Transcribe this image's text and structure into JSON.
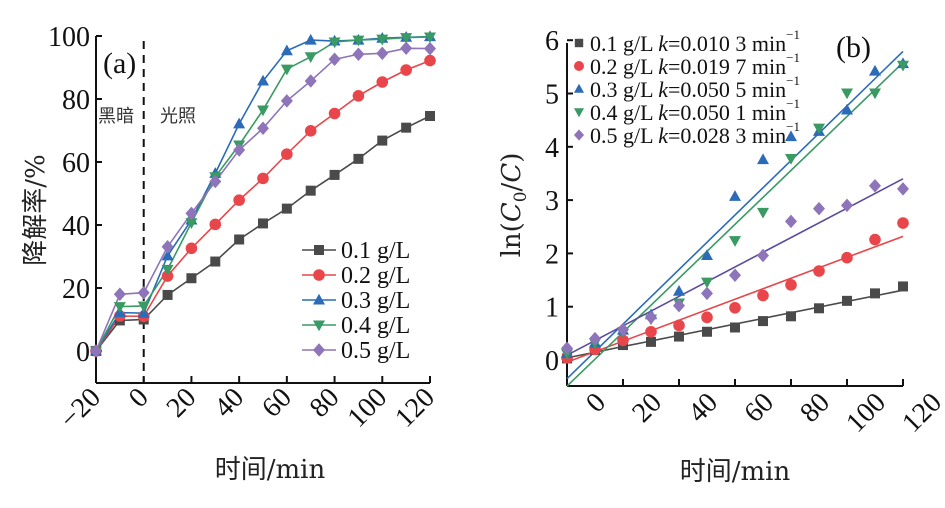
{
  "chart_data": [
    {
      "panel": "(a)",
      "type": "line",
      "title": "",
      "xlabel": "时间/min",
      "ylabel": "降解率/%",
      "xlim": [
        -20,
        120
      ],
      "ylim": [
        -10,
        100
      ],
      "xticks": [
        -20,
        0,
        20,
        40,
        60,
        80,
        100,
        120
      ],
      "yticks": [
        0,
        20,
        40,
        60,
        80,
        100
      ],
      "x": [
        -20,
        -10,
        0,
        10,
        20,
        30,
        40,
        50,
        60,
        70,
        80,
        90,
        100,
        110,
        120
      ],
      "annotations": {
        "dark": "黑暗",
        "light": "光照",
        "divider_x": 0
      },
      "legend_position": "bottom-right",
      "series": [
        {
          "name": "0.1 g/L",
          "marker": "square",
          "color": "#4a4a4a",
          "values": [
            0,
            9.7,
            10,
            17.8,
            23.1,
            28.4,
            35.4,
            40.5,
            45.2,
            50.9,
            55.9,
            61.0,
            66.8,
            70.9,
            74.6
          ]
        },
        {
          "name": "0.2 g/L",
          "marker": "circle",
          "color": "#e8464a",
          "values": [
            0,
            11.1,
            11,
            23.8,
            32.6,
            40.2,
            47.9,
            54.8,
            62.5,
            69.9,
            75.4,
            81.0,
            85.4,
            89.2,
            92.2
          ]
        },
        {
          "name": "0.3 g/L",
          "marker": "triangle-up",
          "color": "#2b6bb8",
          "values": [
            0,
            12.2,
            12,
            30.2,
            41.6,
            56.4,
            72.1,
            85.7,
            95.3,
            98.7,
            98.4,
            98.7,
            99.3,
            99.6,
            99.8
          ]
        },
        {
          "name": "0.4 g/L",
          "marker": "triangle-down",
          "color": "#3a9a63",
          "values": [
            0,
            14.1,
            14.3,
            25.9,
            40.7,
            55.3,
            65.4,
            76.5,
            89.5,
            93.4,
            98.1,
            98.7,
            99.0,
            99.5,
            99.7
          ]
        },
        {
          "name": "0.5 g/L",
          "marker": "diamond",
          "color": "#8e74b8",
          "values": [
            0,
            18.0,
            18.5,
            33.1,
            43.7,
            53.8,
            63.8,
            70.7,
            79.4,
            85.7,
            92.6,
            94.2,
            94.5,
            96.1,
            96.0
          ]
        }
      ]
    },
    {
      "panel": "(b)",
      "type": "scatter",
      "title": "",
      "xlabel": "时间/min",
      "ylabel_prefix": "ln(",
      "ylabel_c0": "C",
      "ylabel_sub": "0",
      "ylabel_mid": "/",
      "ylabel_c": "C",
      "ylabel_suffix": ")",
      "xlim": [
        0,
        120
      ],
      "ylim": [
        -0.5,
        6
      ],
      "xticks": [
        0,
        20,
        40,
        60,
        80,
        100,
        120
      ],
      "yticks": [
        0,
        1,
        2,
        3,
        4,
        5,
        6
      ],
      "x": [
        0,
        10,
        20,
        30,
        40,
        50,
        60,
        70,
        80,
        90,
        100,
        110,
        120
      ],
      "legend_position": "top-left",
      "series": [
        {
          "name": "0.1 g/L",
          "k_label": "k",
          "k_value": "=0.010 3 min",
          "unit_sup": "−1",
          "marker": "square",
          "color": "#4a4a4a",
          "line_color": "#4a4a4a",
          "values": [
            0.03,
            0.19,
            0.28,
            0.34,
            0.44,
            0.53,
            0.61,
            0.73,
            0.82,
            0.97,
            1.11,
            1.25,
            1.38
          ],
          "fit": [
            0.04,
            1.31
          ]
        },
        {
          "name": "0.2 g/L",
          "k_label": "k",
          "k_value": "=0.019 7 min",
          "unit_sup": "−1",
          "marker": "circle",
          "color": "#e8464a",
          "line_color": "#e8464a",
          "values": [
            0.04,
            0.2,
            0.37,
            0.53,
            0.65,
            0.8,
            0.98,
            1.21,
            1.41,
            1.67,
            1.92,
            2.26,
            2.57
          ],
          "fit": [
            -0.04,
            2.32
          ]
        },
        {
          "name": "0.3 g/L",
          "k_label": "k",
          "k_value": "=0.050 5 min",
          "unit_sup": "−1",
          "marker": "triangle-up",
          "color": "#2b6bb8",
          "line_color": "#2b6bb8",
          "values": [
            0.12,
            0.32,
            0.56,
            0.85,
            1.29,
            1.96,
            3.07,
            3.76,
            4.19,
            4.29,
            4.69,
            5.42,
            5.56
          ],
          "fit": [
            -0.35,
            5.79
          ]
        },
        {
          "name": "0.4 g/L",
          "k_label": "k",
          "k_value": "=0.050 1 min",
          "unit_sup": "−1",
          "marker": "triangle-down",
          "color": "#3a9a63",
          "line_color": "#3a9a63",
          "values": [
            0.12,
            0.32,
            0.53,
            0.77,
            1.07,
            1.46,
            2.24,
            2.77,
            3.78,
            4.35,
            5.01,
            5.01,
            5.53
          ],
          "fit": [
            -0.49,
            5.58
          ]
        },
        {
          "name": "0.5 g/L",
          "k_label": "k",
          "k_value": "=0.028 3 min",
          "unit_sup": "−1",
          "marker": "diamond",
          "color": "#8e74b8",
          "line_color": "#5a4aa0",
          "values": [
            0.22,
            0.4,
            0.57,
            0.8,
            1.02,
            1.25,
            1.59,
            1.96,
            2.6,
            2.84,
            2.9,
            3.27,
            3.21
          ],
          "fit": [
            0.09,
            3.4
          ]
        }
      ]
    }
  ]
}
